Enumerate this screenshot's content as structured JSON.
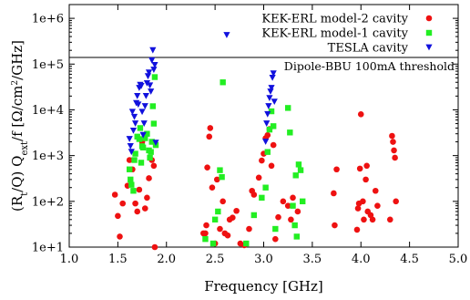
{
  "chart_data": {
    "type": "scatter",
    "title": "",
    "xlabel": "Frequency [GHz]",
    "ylabel": {
      "prefix": "(R",
      "r_sub": "t",
      "mid": "/Q) Q",
      "q_sub": "ext",
      "after": "/f [Ω/cm",
      "sup": "2",
      "suffix": "/GHz]"
    },
    "xlim": [
      1.0,
      5.0
    ],
    "ylim": [
      10,
      2000000
    ],
    "yscale": "log",
    "grid": false,
    "legend_position": "top-right",
    "x_ticks": [
      "1.0",
      "1.5",
      "2.0",
      "2.5",
      "3.0",
      "3.5",
      "4.0",
      "4.5",
      "5.0"
    ],
    "y_ticks": [
      "1e+1",
      "1e+2",
      "1e+3",
      "1e+4",
      "1e+5",
      "1e+6"
    ],
    "threshold": {
      "value": 140000,
      "label": "Dipole-BBU 100mA threshold"
    },
    "series": [
      {
        "name": "KEK-ERL model-2 cavity",
        "color": "#ee1111",
        "marker": "circle",
        "points": [
          [
            1.47,
            140
          ],
          [
            1.5,
            48
          ],
          [
            1.52,
            17
          ],
          [
            1.55,
            90
          ],
          [
            1.65,
            500
          ],
          [
            1.68,
            90
          ],
          [
            1.7,
            60
          ],
          [
            1.72,
            180
          ],
          [
            1.75,
            2000
          ],
          [
            1.78,
            70
          ],
          [
            1.8,
            120
          ],
          [
            1.82,
            320
          ],
          [
            1.85,
            800
          ],
          [
            1.87,
            600
          ],
          [
            1.88,
            10
          ],
          [
            2.38,
            20
          ],
          [
            2.4,
            20
          ],
          [
            2.41,
            30
          ],
          [
            2.42,
            550
          ],
          [
            2.44,
            2600
          ],
          [
            2.45,
            4000
          ],
          [
            2.47,
            200
          ],
          [
            2.5,
            12
          ],
          [
            2.55,
            25
          ],
          [
            2.6,
            20
          ],
          [
            2.63,
            18
          ],
          [
            2.65,
            40
          ],
          [
            2.68,
            44
          ],
          [
            2.72,
            62
          ],
          [
            2.76,
            12
          ],
          [
            2.8,
            11
          ],
          [
            2.85,
            25
          ],
          [
            2.88,
            170
          ],
          [
            2.9,
            140
          ],
          [
            2.95,
            330
          ],
          [
            2.98,
            780
          ],
          [
            3.0,
            1100
          ],
          [
            3.02,
            2400
          ],
          [
            3.04,
            2800
          ],
          [
            3.06,
            3800
          ],
          [
            3.08,
            600
          ],
          [
            3.1,
            1700
          ],
          [
            3.12,
            15
          ],
          [
            3.15,
            45
          ],
          [
            3.2,
            100
          ],
          [
            3.25,
            80
          ],
          [
            3.28,
            40
          ],
          [
            3.3,
            120
          ],
          [
            3.35,
            60
          ],
          [
            3.72,
            150
          ],
          [
            3.73,
            30
          ],
          [
            3.75,
            500
          ],
          [
            3.96,
            24
          ],
          [
            3.97,
            70
          ],
          [
            3.98,
            90
          ],
          [
            3.99,
            520
          ],
          [
            4.0,
            8000
          ],
          [
            4.02,
            100
          ],
          [
            4.03,
            40
          ],
          [
            4.05,
            300
          ],
          [
            4.06,
            600
          ],
          [
            4.07,
            60
          ],
          [
            4.1,
            50
          ],
          [
            4.12,
            40
          ],
          [
            4.15,
            170
          ],
          [
            4.17,
            80
          ],
          [
            4.3,
            40
          ],
          [
            4.32,
            2700
          ],
          [
            4.33,
            2000
          ],
          [
            4.34,
            1300
          ],
          [
            4.35,
            900
          ],
          [
            4.36,
            100
          ],
          [
            2.52,
            300
          ],
          [
            2.58,
            100
          ],
          [
            1.6,
            220
          ],
          [
            1.62,
            800
          ]
        ]
      },
      {
        "name": "KEK-ERL model-1 cavity",
        "color": "#22ee22",
        "marker": "square",
        "points": [
          [
            1.62,
            500
          ],
          [
            1.63,
            300
          ],
          [
            1.64,
            230
          ],
          [
            1.66,
            170
          ],
          [
            1.67,
            800
          ],
          [
            1.68,
            1100
          ],
          [
            1.7,
            2600
          ],
          [
            1.72,
            2300
          ],
          [
            1.73,
            4000
          ],
          [
            1.74,
            700
          ],
          [
            1.75,
            1600
          ],
          [
            1.76,
            1500
          ],
          [
            1.78,
            2400
          ],
          [
            1.8,
            3000
          ],
          [
            1.82,
            1300
          ],
          [
            1.83,
            900
          ],
          [
            1.84,
            1200
          ],
          [
            1.85,
            2000
          ],
          [
            1.86,
            12000
          ],
          [
            1.87,
            5000
          ],
          [
            1.88,
            52000
          ],
          [
            1.89,
            1700
          ],
          [
            2.4,
            15
          ],
          [
            2.48,
            12
          ],
          [
            2.5,
            40
          ],
          [
            2.53,
            60
          ],
          [
            2.55,
            480
          ],
          [
            2.57,
            340
          ],
          [
            2.58,
            40000
          ],
          [
            2.82,
            12
          ],
          [
            2.9,
            50
          ],
          [
            2.98,
            120
          ],
          [
            3.02,
            200
          ],
          [
            3.04,
            1200
          ],
          [
            3.06,
            3700
          ],
          [
            3.08,
            9300
          ],
          [
            3.1,
            4400
          ],
          [
            3.12,
            25
          ],
          [
            3.25,
            11000
          ],
          [
            3.27,
            3200
          ],
          [
            3.3,
            80
          ],
          [
            3.32,
            30
          ],
          [
            3.34,
            17
          ],
          [
            3.36,
            640
          ],
          [
            3.38,
            480
          ],
          [
            3.4,
            100
          ],
          [
            3.33,
            370
          ]
        ]
      },
      {
        "name": "TESLA cavity",
        "color": "#1111dd",
        "marker": "triangle-down",
        "points": [
          [
            1.62,
            2300
          ],
          [
            1.63,
            1600
          ],
          [
            1.64,
            1200
          ],
          [
            1.65,
            9000
          ],
          [
            1.66,
            3500
          ],
          [
            1.67,
            7000
          ],
          [
            1.68,
            5000
          ],
          [
            1.69,
            14000
          ],
          [
            1.7,
            20000
          ],
          [
            1.71,
            13000
          ],
          [
            1.72,
            30000
          ],
          [
            1.73,
            35000
          ],
          [
            1.74,
            33000
          ],
          [
            1.75,
            9000
          ],
          [
            1.76,
            2800
          ],
          [
            1.77,
            5000
          ],
          [
            1.78,
            12000
          ],
          [
            1.79,
            20000
          ],
          [
            1.8,
            38000
          ],
          [
            1.81,
            54000
          ],
          [
            1.82,
            65000
          ],
          [
            1.83,
            34000
          ],
          [
            1.84,
            25000
          ],
          [
            1.85,
            120000
          ],
          [
            1.86,
            200000
          ],
          [
            1.87,
            75000
          ],
          [
            1.88,
            95000
          ],
          [
            1.89,
            1900
          ],
          [
            2.62,
            430000
          ],
          [
            3.02,
            2000
          ],
          [
            3.03,
            5000
          ],
          [
            3.04,
            8000
          ],
          [
            3.05,
            12000
          ],
          [
            3.06,
            18000
          ],
          [
            3.07,
            25000
          ],
          [
            3.08,
            30000
          ],
          [
            3.09,
            50000
          ],
          [
            3.1,
            62000
          ],
          [
            3.11,
            15000
          ]
        ]
      }
    ]
  }
}
